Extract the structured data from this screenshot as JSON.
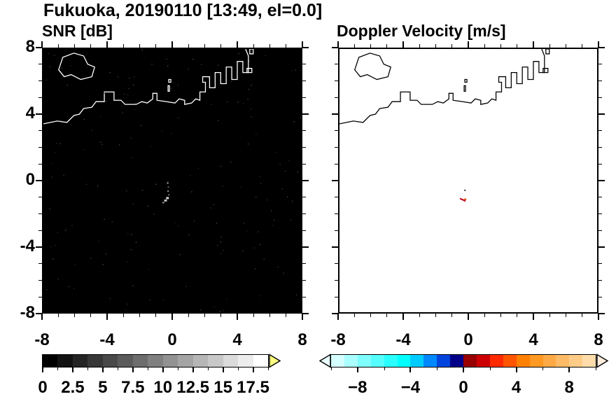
{
  "title": "Fukuoka, 20190110 [13:49, el=0.0]",
  "panels": [
    {
      "title": "SNR [dB]"
    },
    {
      "title": "Doppler Velocity [m/s]"
    }
  ],
  "chart_data": [
    {
      "type": "heatmap",
      "title": "SNR [dB]",
      "xlim": [
        -8,
        8
      ],
      "ylim": [
        -8,
        8
      ],
      "x_tick_labels": [
        "-8",
        "-4",
        "0",
        "4",
        "8"
      ],
      "x_tick_values": [
        -8,
        -4,
        0,
        4,
        8
      ],
      "y_tick_labels": [
        "8",
        "4",
        "0",
        "-4",
        "-8"
      ],
      "y_tick_values": [
        8,
        4,
        0,
        -4,
        -8
      ],
      "minor_tick_step": 1,
      "background": "#000000",
      "coast_color": "#ffffff",
      "noise_dot_count": 170,
      "echoes": [
        {
          "x": -0.32,
          "y": -0.08,
          "w": 2,
          "h": 3,
          "color": "#888888"
        },
        {
          "x": -0.28,
          "y": -0.35,
          "w": 2,
          "h": 2,
          "color": "#666666"
        },
        {
          "x": -0.3,
          "y": -0.6,
          "w": 2,
          "h": 2,
          "color": "#999999"
        },
        {
          "x": -0.25,
          "y": -0.82,
          "w": 2,
          "h": 2,
          "color": "#777777"
        },
        {
          "x": -0.38,
          "y": -1.0,
          "w": 4,
          "h": 3,
          "color": "#dddddd"
        },
        {
          "x": -0.5,
          "y": -1.15,
          "w": 4,
          "h": 3,
          "color": "#bbbbbb"
        },
        {
          "x": -0.62,
          "y": -1.3,
          "w": 3,
          "h": 2,
          "color": "#888888"
        }
      ],
      "colorbar": {
        "min": 0,
        "max": 18.75,
        "tick_labels": [
          "0",
          "2.5",
          "5",
          "7.5",
          "10",
          "12.5",
          "15",
          "17.5"
        ],
        "tick_values": [
          0,
          2.5,
          5,
          7.5,
          10,
          12.5,
          15,
          17.5
        ],
        "minor_step": 1.25,
        "segments": 15,
        "start_color": "#000000",
        "end_color": "#ffffff",
        "over_arrow_color": "#ffff80"
      }
    },
    {
      "type": "heatmap",
      "title": "Doppler Velocity [m/s]",
      "xlim": [
        -8,
        8
      ],
      "ylim": [
        -8,
        8
      ],
      "x_tick_labels": [
        "-8",
        "-4",
        "0",
        "4",
        "8"
      ],
      "x_tick_values": [
        -8,
        -4,
        0,
        4,
        8
      ],
      "minor_tick_step": 1,
      "background": "#ffffff",
      "coast_color": "#000000",
      "echoes": [
        {
          "x": -0.25,
          "y": -0.55,
          "w": 2,
          "h": 2,
          "color": "#333333"
        },
        {
          "x": -0.5,
          "y": -1.05,
          "w": 9,
          "h": 2,
          "color": "#bb0022",
          "rot": 25
        },
        {
          "x": -0.3,
          "y": -1.12,
          "w": 4,
          "h": 2,
          "color": "#dd4400",
          "rot": -15
        }
      ],
      "colorbar": {
        "min": -10,
        "max": 10,
        "tick_labels": [
          "−8",
          "−4",
          "0",
          "4",
          "8"
        ],
        "tick_values": [
          -8,
          -4,
          0,
          4,
          8
        ],
        "minor_step": 2,
        "colors": [
          "#d5ffff",
          "#aaffff",
          "#80ffff",
          "#55ffff",
          "#2affff",
          "#00ffff",
          "#00ccff",
          "#0088ff",
          "#0044dd",
          "#000088",
          "#990000",
          "#cc0000",
          "#ff2a00",
          "#ff5500",
          "#ff7f00",
          "#ff9922",
          "#ffaa44",
          "#ffbb66",
          "#ffcc88",
          "#ffddaa"
        ],
        "under_arrow_color": "#e8ffff",
        "over_arrow_color": "#ffeedd"
      }
    }
  ]
}
